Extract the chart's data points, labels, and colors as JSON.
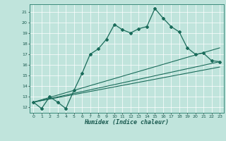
{
  "xlabel": "Humidex (Indice chaleur)",
  "bg_color": "#c0e4dc",
  "line_color": "#1a6b5a",
  "xlim": [
    -0.5,
    23.5
  ],
  "ylim": [
    11.5,
    21.7
  ],
  "xticks": [
    0,
    1,
    2,
    3,
    4,
    5,
    6,
    7,
    8,
    9,
    10,
    11,
    12,
    13,
    14,
    15,
    16,
    17,
    18,
    19,
    20,
    21,
    22,
    23
  ],
  "yticks": [
    12,
    13,
    14,
    15,
    16,
    17,
    18,
    19,
    20,
    21
  ],
  "main_x": [
    0,
    1,
    2,
    3,
    4,
    5,
    6,
    7,
    8,
    9,
    10,
    11,
    12,
    13,
    14,
    15,
    16,
    17,
    18,
    19,
    20,
    21,
    22,
    23
  ],
  "main_y": [
    12.5,
    11.9,
    13.0,
    12.5,
    11.9,
    13.6,
    15.2,
    17.0,
    17.5,
    18.4,
    19.8,
    19.3,
    19.0,
    19.4,
    19.6,
    21.3,
    20.4,
    19.6,
    19.1,
    17.6,
    17.0,
    17.1,
    16.4,
    16.3
  ],
  "line1_x": [
    0,
    23
  ],
  "line1_y": [
    12.5,
    16.3
  ],
  "line2_x": [
    0,
    23
  ],
  "line2_y": [
    12.5,
    17.6
  ],
  "line3_x": [
    0,
    23
  ],
  "line3_y": [
    12.5,
    15.8
  ]
}
